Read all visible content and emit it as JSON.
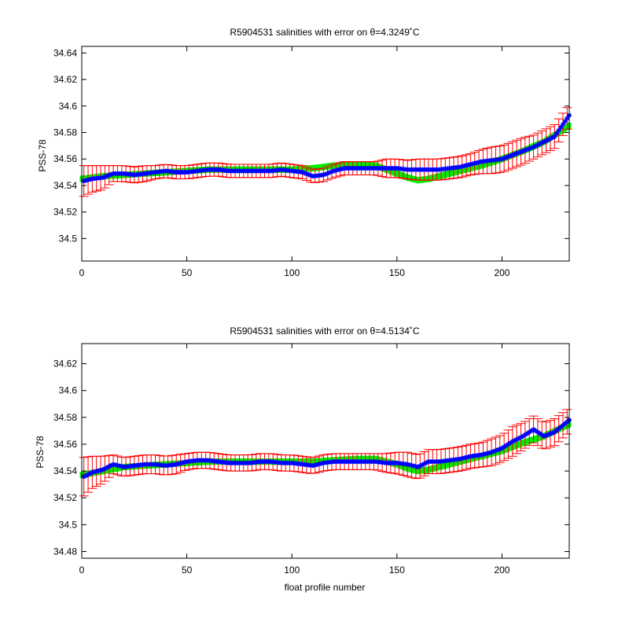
{
  "figure": {
    "background": "#ffffff",
    "axis_color": "#000000",
    "error_color": "#ff0000",
    "marker_color": "#0000ff",
    "band_color": "#00ee00"
  },
  "chart_data": [
    {
      "type": "scatter",
      "title": "R5904531 salinities with error on θ=4.3249˚C",
      "xlabel": "",
      "ylabel": "PSS-78",
      "xlim": [
        0,
        232
      ],
      "ylim": [
        34.483,
        34.645
      ],
      "xticks": [
        0,
        50,
        100,
        150,
        200
      ],
      "yticks": [
        34.5,
        34.52,
        34.54,
        34.56,
        34.58,
        34.6,
        34.62,
        34.64
      ],
      "xtick_labels": [
        "0",
        "50",
        "100",
        "150",
        "200"
      ],
      "ytick_labels": [
        "34.5",
        "34.52",
        "34.54",
        "34.56",
        "34.58",
        "34.6",
        "34.62",
        "34.64"
      ],
      "grid": false,
      "series": [
        {
          "role": "float-salinity",
          "style": "blue star markers with red error bars",
          "x": [
            0,
            5,
            10,
            15,
            20,
            25,
            30,
            35,
            40,
            45,
            50,
            55,
            60,
            65,
            70,
            75,
            80,
            85,
            90,
            95,
            100,
            105,
            110,
            115,
            120,
            125,
            130,
            135,
            140,
            145,
            150,
            155,
            160,
            165,
            170,
            175,
            180,
            185,
            190,
            195,
            200,
            205,
            210,
            215,
            220,
            225,
            232
          ],
          "y": [
            34.543,
            34.545,
            34.546,
            34.549,
            34.549,
            34.548,
            34.549,
            34.55,
            34.551,
            34.55,
            34.55,
            34.551,
            34.552,
            34.552,
            34.551,
            34.551,
            34.551,
            34.551,
            34.551,
            34.552,
            34.551,
            34.55,
            34.547,
            34.548,
            34.551,
            34.553,
            34.553,
            34.553,
            34.553,
            34.553,
            34.553,
            34.552,
            34.552,
            34.552,
            34.552,
            34.553,
            34.554,
            34.556,
            34.558,
            34.559,
            34.56,
            34.563,
            34.566,
            34.569,
            34.573,
            34.577,
            34.593
          ],
          "error": [
            0.012,
            0.01,
            0.009,
            0.006,
            0.006,
            0.006,
            0.006,
            0.005,
            0.005,
            0.005,
            0.005,
            0.005,
            0.005,
            0.005,
            0.005,
            0.005,
            0.005,
            0.005,
            0.005,
            0.005,
            0.005,
            0.005,
            0.005,
            0.005,
            0.005,
            0.005,
            0.005,
            0.005,
            0.005,
            0.007,
            0.007,
            0.007,
            0.008,
            0.008,
            0.008,
            0.008,
            0.008,
            0.008,
            0.009,
            0.01,
            0.01,
            0.01,
            0.01,
            0.009,
            0.009,
            0.009,
            0.008
          ]
        },
        {
          "role": "mapped-salinity",
          "style": "green band",
          "x": [
            0,
            10,
            20,
            30,
            40,
            50,
            60,
            70,
            80,
            90,
            100,
            110,
            120,
            130,
            140,
            145,
            150,
            155,
            160,
            165,
            170,
            175,
            180,
            190,
            200,
            210,
            220,
            232
          ],
          "y": [
            34.545,
            34.547,
            34.548,
            34.549,
            34.55,
            34.551,
            34.552,
            34.552,
            34.552,
            34.552,
            34.552,
            34.553,
            34.555,
            34.556,
            34.555,
            34.552,
            34.549,
            34.546,
            34.544,
            34.545,
            34.547,
            34.549,
            34.551,
            34.555,
            34.56,
            34.566,
            34.573,
            34.585
          ]
        }
      ]
    },
    {
      "type": "scatter",
      "title": "R5904531 salinities with error on θ=4.5134˚C",
      "xlabel": "float profile number",
      "ylabel": "PSS-78",
      "xlim": [
        0,
        232
      ],
      "ylim": [
        34.475,
        34.635
      ],
      "xticks": [
        0,
        50,
        100,
        150,
        200
      ],
      "yticks": [
        34.48,
        34.5,
        34.52,
        34.54,
        34.56,
        34.58,
        34.6,
        34.62
      ],
      "xtick_labels": [
        "0",
        "50",
        "100",
        "150",
        "200"
      ],
      "ytick_labels": [
        "34.48",
        "34.5",
        "34.52",
        "34.54",
        "34.56",
        "34.58",
        "34.6",
        "34.62"
      ],
      "grid": false,
      "series": [
        {
          "role": "float-salinity",
          "style": "blue star markers with red error bars",
          "x": [
            0,
            5,
            10,
            15,
            20,
            25,
            30,
            35,
            40,
            45,
            50,
            55,
            60,
            65,
            70,
            75,
            80,
            85,
            90,
            95,
            100,
            105,
            110,
            115,
            120,
            125,
            130,
            135,
            140,
            145,
            150,
            155,
            160,
            165,
            170,
            175,
            180,
            185,
            190,
            195,
            200,
            205,
            210,
            215,
            220,
            225,
            232
          ],
          "y": [
            34.535,
            34.539,
            34.541,
            34.545,
            34.543,
            34.544,
            34.545,
            34.545,
            34.544,
            34.545,
            34.547,
            34.548,
            34.548,
            34.547,
            34.546,
            34.546,
            34.546,
            34.547,
            34.547,
            34.546,
            34.546,
            34.545,
            34.544,
            34.546,
            34.547,
            34.547,
            34.547,
            34.547,
            34.547,
            34.546,
            34.546,
            34.545,
            34.543,
            34.547,
            34.547,
            34.548,
            34.549,
            34.551,
            34.552,
            34.554,
            34.557,
            34.562,
            34.566,
            34.571,
            34.566,
            34.569,
            34.578
          ],
          "error": [
            0.015,
            0.012,
            0.01,
            0.007,
            0.007,
            0.007,
            0.007,
            0.007,
            0.007,
            0.007,
            0.006,
            0.006,
            0.006,
            0.006,
            0.006,
            0.006,
            0.006,
            0.006,
            0.006,
            0.006,
            0.006,
            0.006,
            0.006,
            0.006,
            0.006,
            0.006,
            0.006,
            0.006,
            0.006,
            0.007,
            0.008,
            0.009,
            0.009,
            0.009,
            0.009,
            0.009,
            0.009,
            0.009,
            0.009,
            0.01,
            0.01,
            0.011,
            0.01,
            0.01,
            0.01,
            0.01,
            0.009
          ]
        },
        {
          "role": "mapped-salinity",
          "style": "green band",
          "x": [
            0,
            10,
            20,
            30,
            40,
            50,
            60,
            70,
            80,
            90,
            100,
            110,
            120,
            130,
            140,
            145,
            150,
            155,
            160,
            165,
            170,
            175,
            180,
            190,
            200,
            210,
            220,
            232
          ],
          "y": [
            34.537,
            34.54,
            34.543,
            34.544,
            34.545,
            34.546,
            34.547,
            34.547,
            34.547,
            34.547,
            34.547,
            34.547,
            34.548,
            34.549,
            34.549,
            34.547,
            34.545,
            34.542,
            34.54,
            34.541,
            34.543,
            34.545,
            34.547,
            34.551,
            34.555,
            34.561,
            34.566,
            34.575
          ]
        }
      ]
    }
  ]
}
